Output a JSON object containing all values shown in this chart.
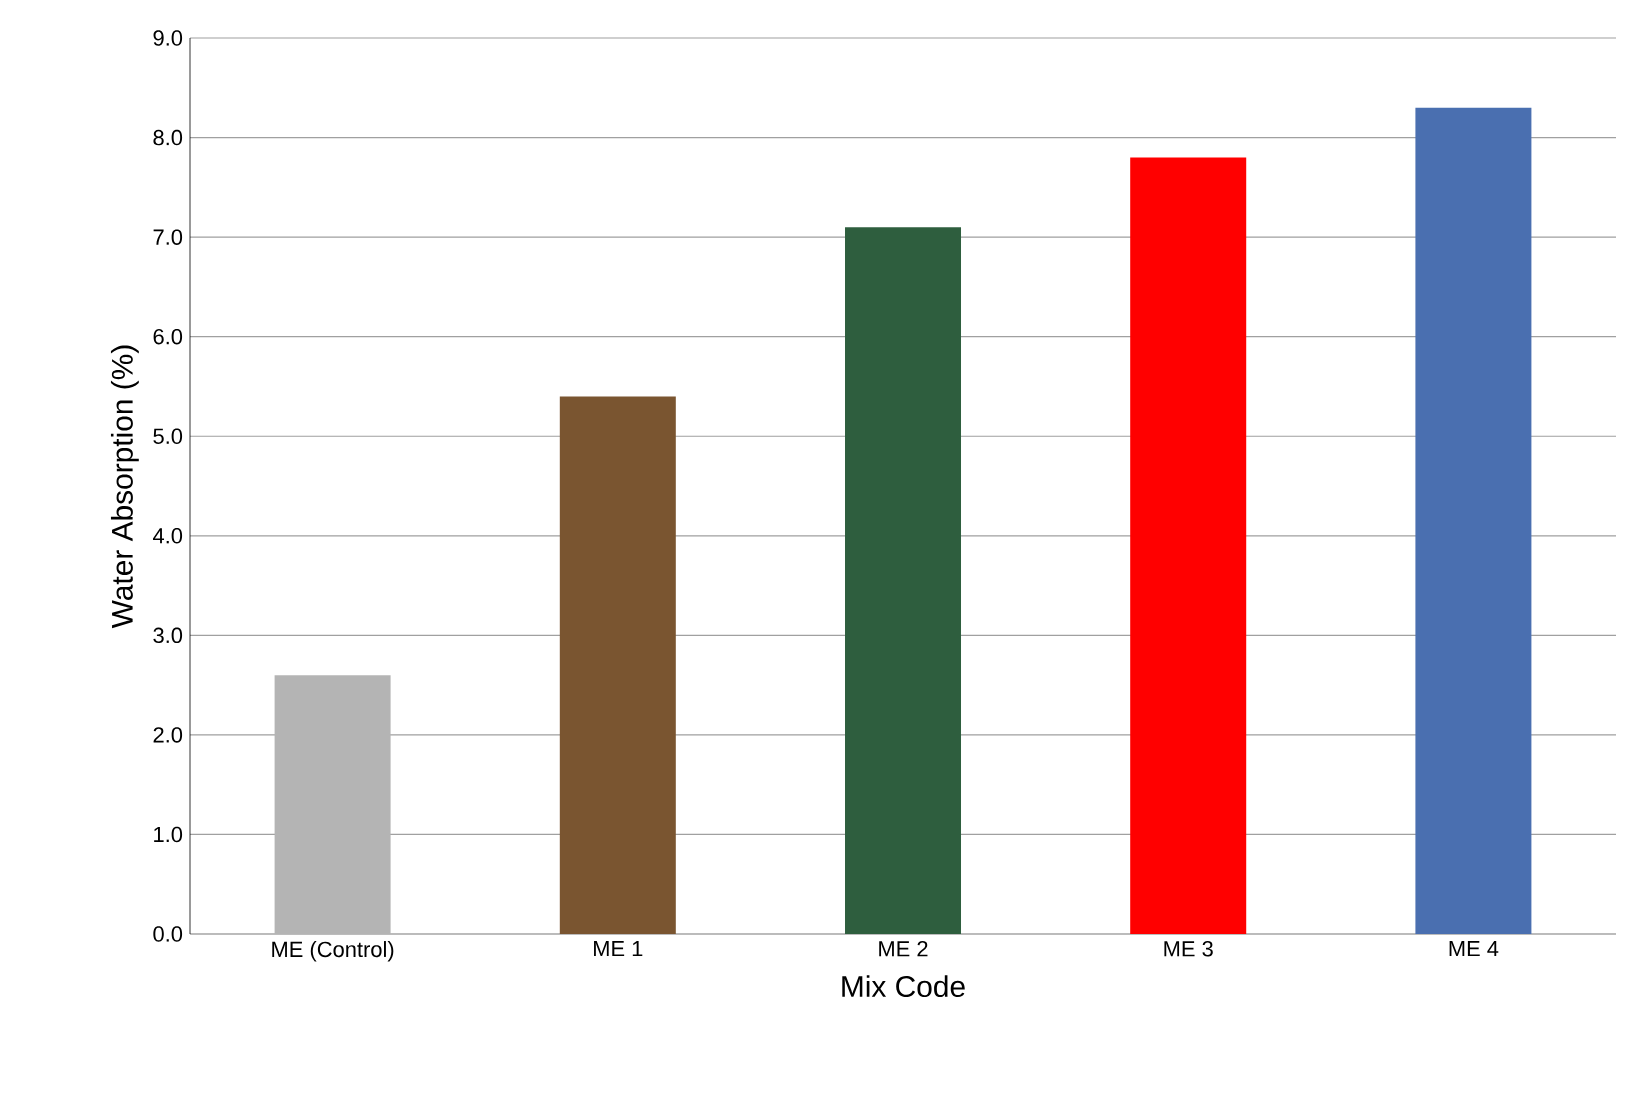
{
  "chart_data": {
    "type": "bar",
    "xlabel": "Mix Code",
    "ylabel": "Water Absorption (%)",
    "categories": [
      "ME (Control)",
      "ME 1",
      "ME 2",
      "ME 3",
      "ME 4"
    ],
    "values": [
      2.6,
      5.4,
      7.1,
      7.8,
      8.3
    ],
    "colors": [
      "#b4b4b4",
      "#7a5530",
      "#2e5e3e",
      "#ff0000",
      "#4a6fb0"
    ],
    "ylim": [
      0,
      9
    ],
    "yticks": [
      {
        "value": 0,
        "label": "0.0"
      },
      {
        "value": 1,
        "label": "1.0"
      },
      {
        "value": 2,
        "label": "2.0"
      },
      {
        "value": 3,
        "label": "3.0"
      },
      {
        "value": 4,
        "label": "4.0"
      },
      {
        "value": 5,
        "label": "5.0"
      },
      {
        "value": 6,
        "label": "6.0"
      },
      {
        "value": 7,
        "label": "7.0"
      },
      {
        "value": 8,
        "label": "8.0"
      },
      {
        "value": 9,
        "label": "9.0"
      }
    ],
    "grid": "y"
  }
}
